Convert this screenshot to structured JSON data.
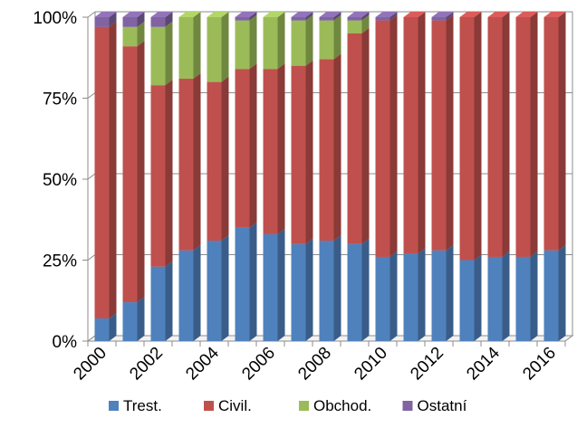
{
  "chart_data": {
    "type": "bar",
    "stacked": "percent",
    "style": "3d-column",
    "categories": [
      "2000",
      "2001",
      "2002",
      "2003",
      "2004",
      "2005",
      "2006",
      "2007",
      "2008",
      "2009",
      "2010",
      "2011",
      "2012",
      "2013",
      "2014",
      "2015",
      "2016"
    ],
    "x_tick_labels": [
      "2000",
      "2002",
      "2004",
      "2006",
      "2008",
      "2010",
      "2012",
      "2014",
      "2016"
    ],
    "y_tick_labels": [
      "0%",
      "25%",
      "50%",
      "75%",
      "100%"
    ],
    "ylim": [
      0,
      100
    ],
    "grid": true,
    "legend_position": "bottom",
    "series": [
      {
        "name": "Trest.",
        "color": "#4f81bd",
        "values": [
          7,
          12,
          23,
          28,
          31,
          35,
          33,
          30,
          31,
          30,
          26,
          27,
          28,
          25,
          26,
          26,
          28
        ]
      },
      {
        "name": "Civil.",
        "color": "#c0504d",
        "values": [
          90,
          79,
          56,
          53,
          49,
          49,
          51,
          55,
          56,
          65,
          73,
          73,
          71,
          75,
          74,
          74,
          72
        ]
      },
      {
        "name": "Obchod.",
        "color": "#9bbb59",
        "values": [
          0,
          6,
          18,
          19,
          20,
          15,
          16,
          14,
          12,
          4,
          0,
          0,
          0,
          0,
          0,
          0,
          0
        ]
      },
      {
        "name": "Ostatní",
        "color": "#8064a2",
        "values": [
          3,
          3,
          3,
          0,
          0,
          1,
          0,
          1,
          1,
          1,
          1,
          0,
          1,
          0,
          0,
          0,
          0
        ]
      }
    ]
  }
}
